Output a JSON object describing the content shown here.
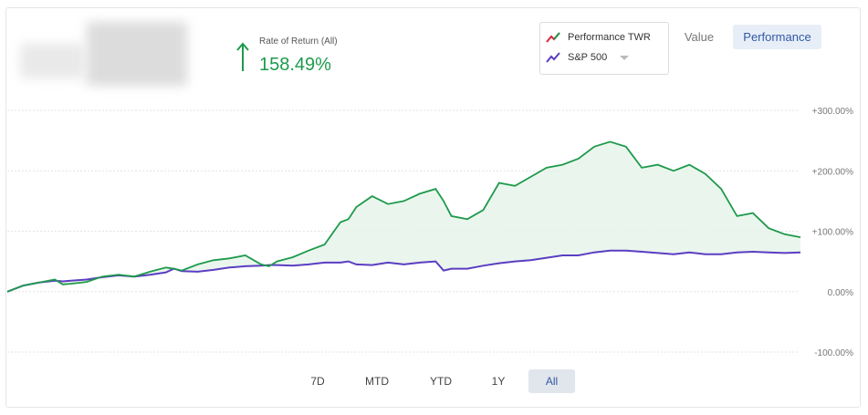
{
  "header": {
    "rate_label": "Rate of Return (All)",
    "rate_value": "158.49%"
  },
  "legend": {
    "items": [
      {
        "label": "Performance TWR",
        "icon": "red-green-line-icon"
      },
      {
        "label": "S&P 500",
        "icon": "purple-line-icon"
      }
    ]
  },
  "view_toggle": {
    "value_label": "Value",
    "performance_label": "Performance",
    "selected": "Performance"
  },
  "range_buttons": [
    "7D",
    "MTD",
    "YTD",
    "1Y",
    "All"
  ],
  "selected_range": "All",
  "colors": {
    "portfolio": "#1e9a4c",
    "benchmark": "#5b3ec2",
    "fill": "#e6f5ea",
    "accent": "#2f5aa5"
  },
  "chart_data": {
    "type": "area",
    "ylim": [
      -100,
      300
    ],
    "yticks": [
      "+300.00%",
      "+200.00%",
      "+100.00%",
      "0.00%",
      "-100.00%"
    ],
    "ytick_values": [
      300,
      200,
      100,
      0,
      -100
    ],
    "x": [
      0,
      2,
      4,
      6,
      7,
      8,
      10,
      12,
      14,
      16,
      18,
      20,
      21,
      22,
      24,
      26,
      28,
      30,
      32,
      33,
      34,
      36,
      38,
      40,
      42,
      43,
      44,
      46,
      48,
      50,
      52,
      54,
      55,
      56,
      58,
      60,
      62,
      64,
      66,
      68,
      70,
      72,
      74,
      76,
      78,
      80,
      82,
      84,
      86,
      88,
      90,
      92,
      94,
      96,
      98,
      100
    ],
    "series": [
      {
        "name": "Performance TWR",
        "values": [
          0,
          10,
          15,
          20,
          12,
          13,
          16,
          25,
          28,
          25,
          33,
          40,
          38,
          35,
          45,
          52,
          55,
          60,
          45,
          42,
          50,
          57,
          68,
          78,
          115,
          120,
          140,
          158,
          145,
          150,
          162,
          170,
          150,
          125,
          120,
          135,
          180,
          175,
          190,
          205,
          210,
          220,
          240,
          248,
          240,
          205,
          210,
          200,
          210,
          195,
          170,
          125,
          130,
          105,
          95,
          90
        ]
      },
      {
        "name": "S&P 500",
        "values": [
          0,
          10,
          15,
          18,
          17,
          18,
          20,
          24,
          27,
          25,
          28,
          32,
          38,
          34,
          33,
          36,
          40,
          42,
          43,
          44,
          44,
          43,
          45,
          48,
          48,
          50,
          45,
          44,
          48,
          45,
          48,
          50,
          35,
          38,
          38,
          43,
          47,
          50,
          52,
          56,
          60,
          60,
          65,
          68,
          68,
          66,
          64,
          62,
          65,
          62,
          62,
          65,
          66,
          65,
          64,
          65
        ]
      }
    ],
    "title": "",
    "xlabel": "",
    "ylabel": "",
    "grid": true,
    "legend": "top-right"
  }
}
